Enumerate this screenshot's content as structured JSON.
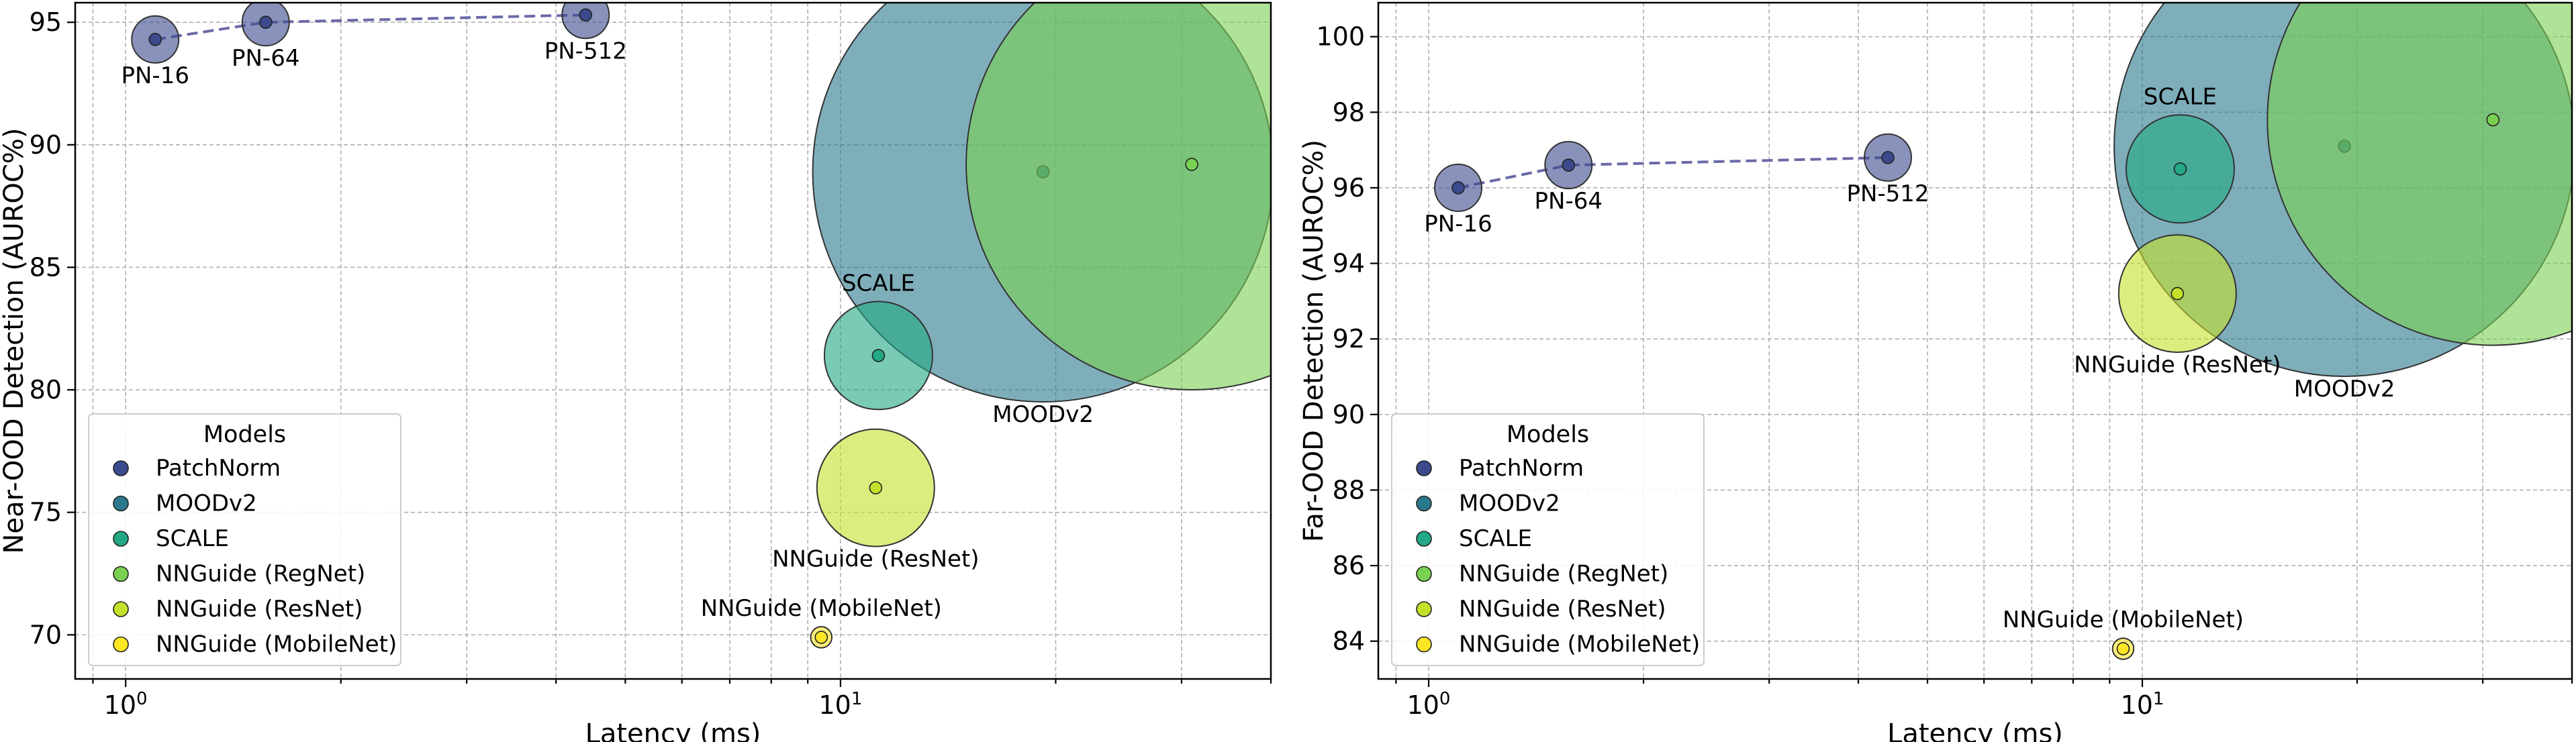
{
  "chart_data": [
    {
      "type": "scatter",
      "xscale": "log",
      "xlim": [
        0.85,
        40
      ],
      "ylim": [
        68.2,
        95.8
      ],
      "xlabel": "Latency (ms)",
      "ylabel": "Near-OOD Detection (AUROC%)",
      "yticks": [
        70,
        75,
        80,
        85,
        90,
        95
      ],
      "grid": true,
      "legend_title": "Models",
      "legend_position": "lower-left",
      "series": [
        {
          "name": "PatchNorm",
          "color": "#3b4a8c",
          "points": [
            {
              "label": "PN-16",
              "x": 1.1,
              "y": 94.3,
              "size": 1
            },
            {
              "label": "PN-64",
              "x": 1.57,
              "y": 95.0,
              "size": 1
            },
            {
              "label": "PN-512",
              "x": 4.4,
              "y": 95.3,
              "size": 1
            }
          ]
        },
        {
          "name": "MOODv2",
          "color": "#2a788e",
          "points": [
            {
              "label": "MOODv2",
              "x": 19.2,
              "y": 88.9,
              "size": 9.8
            }
          ]
        },
        {
          "name": "SCALE",
          "color": "#22a884",
          "points": [
            {
              "label": "SCALE",
              "x": 11.3,
              "y": 81.4,
              "size": 2.3
            }
          ]
        },
        {
          "name": "NNGuide (RegNet)",
          "color": "#7ad151",
          "points": [
            {
              "label": "NNGuide (RegNet)",
              "x": 31.0,
              "y": 89.2,
              "size": 9.6
            }
          ]
        },
        {
          "name": "NNGuide (ResNet)",
          "color": "#c4e02a",
          "points": [
            {
              "label": "NNGuide (ResNet)",
              "x": 11.2,
              "y": 76.0,
              "size": 2.5
            }
          ]
        },
        {
          "name": "NNGuide (MobileNet)",
          "color": "#fde725",
          "points": [
            {
              "label": "NNGuide (MobileNet)",
              "x": 9.4,
              "y": 69.9,
              "size": 0.45
            }
          ]
        }
      ],
      "connected_series": "PatchNorm"
    },
    {
      "type": "scatter",
      "xscale": "log",
      "xlim": [
        0.85,
        40
      ],
      "ylim": [
        83.0,
        100.9
      ],
      "xlabel": "Latency (ms)",
      "ylabel": "Far-OOD Detection (AUROC%)",
      "yticks": [
        84,
        86,
        88,
        90,
        92,
        94,
        96,
        98,
        100
      ],
      "grid": true,
      "legend_title": "Models",
      "legend_position": "lower-left",
      "series": [
        {
          "name": "PatchNorm",
          "color": "#3b4a8c",
          "points": [
            {
              "label": "PN-16",
              "x": 1.1,
              "y": 96.0,
              "size": 1
            },
            {
              "label": "PN-64",
              "x": 1.57,
              "y": 96.6,
              "size": 1
            },
            {
              "label": "PN-512",
              "x": 4.4,
              "y": 96.8,
              "size": 1
            }
          ]
        },
        {
          "name": "MOODv2",
          "color": "#2a788e",
          "points": [
            {
              "label": "MOODv2",
              "x": 19.2,
              "y": 97.1,
              "size": 9.8
            }
          ]
        },
        {
          "name": "SCALE",
          "color": "#22a884",
          "points": [
            {
              "label": "SCALE",
              "x": 11.3,
              "y": 96.5,
              "size": 2.3
            }
          ]
        },
        {
          "name": "NNGuide (RegNet)",
          "color": "#7ad151",
          "points": [
            {
              "label": "NNGuide (RegNet)",
              "x": 31.0,
              "y": 97.8,
              "size": 9.6
            }
          ]
        },
        {
          "name": "NNGuide (ResNet)",
          "color": "#c4e02a",
          "points": [
            {
              "label": "NNGuide (ResNet)",
              "x": 11.2,
              "y": 93.2,
              "size": 2.5
            }
          ]
        },
        {
          "name": "NNGuide (MobileNet)",
          "color": "#fde725",
          "points": [
            {
              "label": "NNGuide (MobileNet)",
              "x": 9.4,
              "y": 83.8,
              "size": 0.45
            }
          ]
        }
      ],
      "connected_series": "PatchNorm"
    }
  ]
}
